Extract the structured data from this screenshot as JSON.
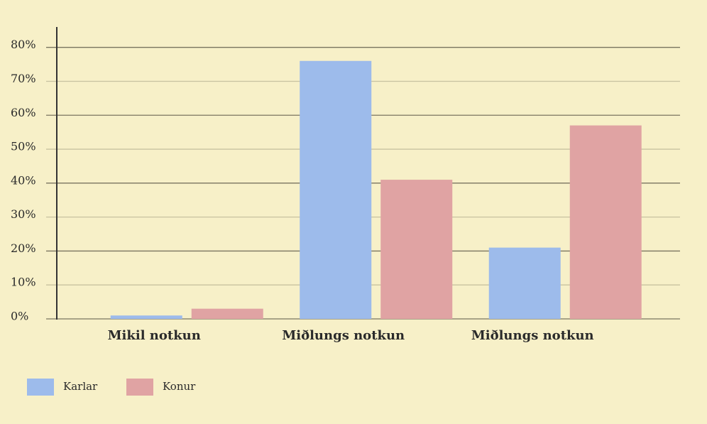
{
  "chart_data": {
    "type": "bar",
    "categories": [
      "Mikil notkun",
      "Miðlungs notkun",
      "Miðlungs notkun"
    ],
    "series": [
      {
        "name": "Karlar",
        "color": "#9dbbeb",
        "values": [
          1,
          76,
          21
        ]
      },
      {
        "name": "Konur",
        "color": "#e0a3a3",
        "values": [
          3,
          41,
          57
        ]
      }
    ],
    "ylim": [
      0,
      86
    ],
    "yticks": [
      {
        "value": 0,
        "label": "0%"
      },
      {
        "value": 10,
        "label": "10%"
      },
      {
        "value": 20,
        "label": "20%"
      },
      {
        "value": 30,
        "label": "30%"
      },
      {
        "value": 40,
        "label": "40%"
      },
      {
        "value": 50,
        "label": "50%"
      },
      {
        "value": 60,
        "label": "60%"
      },
      {
        "value": 70,
        "label": "70%"
      },
      {
        "value": 80,
        "label": "80%"
      }
    ],
    "grid": true,
    "legend": "bottom-left"
  }
}
